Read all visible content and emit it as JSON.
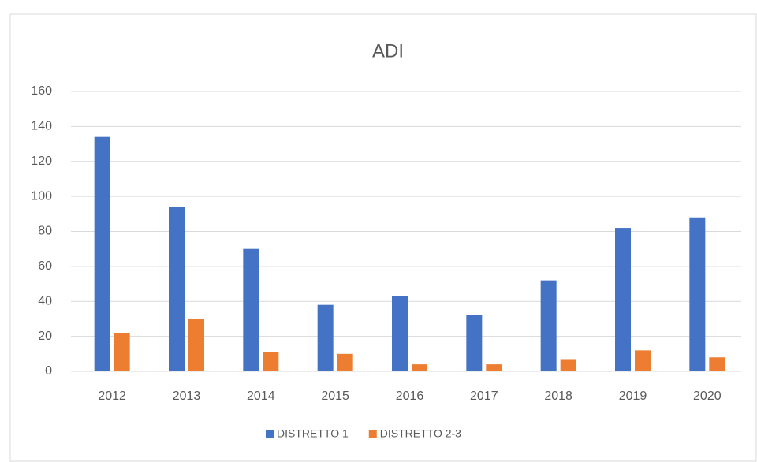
{
  "chart_data": {
    "type": "bar",
    "title": "ADI",
    "categories": [
      "2012",
      "2013",
      "2014",
      "2015",
      "2016",
      "2017",
      "2018",
      "2019",
      "2020"
    ],
    "series": [
      {
        "name": "DISTRETTO 1",
        "color": "#4472c4",
        "values": [
          134,
          94,
          70,
          38,
          43,
          32,
          52,
          82,
          88
        ]
      },
      {
        "name": "DISTRETTO 2-3",
        "color": "#ed7d31",
        "values": [
          22,
          30,
          11,
          10,
          4,
          4,
          7,
          12,
          8
        ]
      }
    ],
    "ylim": [
      0,
      160
    ],
    "yticks": [
      0,
      20,
      40,
      60,
      80,
      100,
      120,
      140,
      160
    ],
    "grid": true,
    "legend": "bottom"
  }
}
